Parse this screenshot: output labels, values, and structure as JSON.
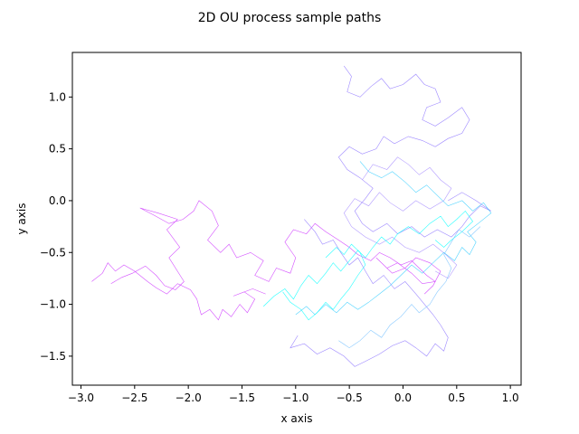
{
  "chart_data": {
    "type": "line",
    "title": "2D OU process sample paths",
    "xlabel": "x axis",
    "ylabel": "y axis",
    "xlim": [
      -3.08,
      1.1
    ],
    "ylim": [
      -1.78,
      1.43
    ],
    "xticks": [
      -3.0,
      -2.5,
      -2.0,
      -1.5,
      -1.0,
      -0.5,
      0.0,
      0.5,
      1.0
    ],
    "xtick_labels": [
      "−3.0",
      "−2.5",
      "−2.0",
      "−1.5",
      "−1.0",
      "−0.5",
      "0.0",
      "0.5",
      "1.0"
    ],
    "yticks": [
      -1.5,
      -1.0,
      -0.5,
      0.0,
      0.5,
      1.0
    ],
    "ytick_labels": [
      "−1.5",
      "−1.0",
      "−0.5",
      "0.0",
      "0.5",
      "1.0"
    ],
    "grid": false,
    "legend": null,
    "series": [
      {
        "color": "#cc33ff",
        "points": [
          [
            -2.72,
            -0.8
          ],
          [
            -2.62,
            -0.74
          ],
          [
            -2.52,
            -0.7
          ],
          [
            -2.4,
            -0.63
          ],
          [
            -2.3,
            -0.72
          ],
          [
            -2.22,
            -0.82
          ],
          [
            -2.12,
            -0.86
          ],
          [
            -2.04,
            -0.78
          ],
          [
            -2.18,
            -0.55
          ],
          [
            -2.08,
            -0.45
          ],
          [
            -2.2,
            -0.28
          ],
          [
            -2.1,
            -0.18
          ],
          [
            -2.28,
            -0.12
          ],
          [
            -2.45,
            -0.07
          ],
          [
            -2.32,
            -0.14
          ],
          [
            -2.18,
            -0.22
          ],
          [
            -2.05,
            -0.18
          ],
          [
            -1.95,
            -0.1
          ],
          [
            -1.9,
            0.0
          ],
          [
            -1.78,
            -0.1
          ],
          [
            -1.72,
            -0.24
          ],
          [
            -1.82,
            -0.38
          ],
          [
            -1.7,
            -0.5
          ],
          [
            -1.62,
            -0.42
          ],
          [
            -1.55,
            -0.55
          ],
          [
            -1.42,
            -0.5
          ],
          [
            -1.3,
            -0.58
          ],
          [
            -1.38,
            -0.72
          ],
          [
            -1.25,
            -0.78
          ],
          [
            -1.18,
            -0.65
          ],
          [
            -1.05,
            -0.7
          ],
          [
            -1.0,
            -0.55
          ],
          [
            -1.1,
            -0.4
          ],
          [
            -1.02,
            -0.28
          ],
          [
            -0.9,
            -0.32
          ],
          [
            -0.82,
            -0.22
          ],
          [
            -0.72,
            -0.3
          ],
          [
            -0.6,
            -0.38
          ],
          [
            -0.5,
            -0.45
          ],
          [
            -0.42,
            -0.52
          ],
          [
            -0.3,
            -0.58
          ],
          [
            -0.22,
            -0.5
          ],
          [
            -0.12,
            -0.55
          ],
          [
            -0.02,
            -0.62
          ],
          [
            0.08,
            -0.58
          ],
          [
            0.15,
            -0.65
          ],
          [
            0.22,
            -0.72
          ],
          [
            0.3,
            -0.78
          ],
          [
            0.18,
            -0.8
          ],
          [
            0.08,
            -0.7
          ],
          [
            -0.05,
            -0.6
          ],
          [
            -0.15,
            -0.65
          ],
          [
            -0.25,
            -0.55
          ],
          [
            -0.18,
            -0.62
          ],
          [
            -0.1,
            -0.7
          ],
          [
            0.02,
            -0.65
          ],
          [
            0.12,
            -0.55
          ],
          [
            0.25,
            -0.6
          ],
          [
            0.35,
            -0.68
          ],
          [
            0.28,
            -0.82
          ],
          [
            0.2,
            -0.9
          ]
        ]
      },
      {
        "color": "#cc33ff",
        "points": [
          [
            -2.9,
            -0.78
          ],
          [
            -2.8,
            -0.7
          ],
          [
            -2.75,
            -0.6
          ],
          [
            -2.68,
            -0.68
          ],
          [
            -2.6,
            -0.62
          ],
          [
            -2.5,
            -0.68
          ],
          [
            -2.38,
            -0.78
          ],
          [
            -2.3,
            -0.84
          ],
          [
            -2.2,
            -0.9
          ],
          [
            -2.1,
            -0.8
          ],
          [
            -1.98,
            -0.86
          ],
          [
            -1.92,
            -0.95
          ],
          [
            -1.88,
            -1.1
          ],
          [
            -1.8,
            -1.05
          ],
          [
            -1.72,
            -1.15
          ],
          [
            -1.68,
            -1.05
          ],
          [
            -1.6,
            -1.12
          ],
          [
            -1.52,
            -1.0
          ],
          [
            -1.45,
            -1.08
          ],
          [
            -1.38,
            -0.95
          ],
          [
            -1.48,
            -0.88
          ],
          [
            -1.58,
            -0.92
          ],
          [
            -1.4,
            -0.85
          ],
          [
            -1.28,
            -0.9
          ]
        ]
      },
      {
        "color": "#8c73ff",
        "points": [
          [
            -0.55,
            1.3
          ],
          [
            -0.48,
            1.2
          ],
          [
            -0.52,
            1.05
          ],
          [
            -0.4,
            1.0
          ],
          [
            -0.3,
            1.1
          ],
          [
            -0.2,
            1.18
          ],
          [
            -0.12,
            1.08
          ],
          [
            0.0,
            1.12
          ],
          [
            0.12,
            1.22
          ],
          [
            0.2,
            1.12
          ],
          [
            0.3,
            1.08
          ],
          [
            0.35,
            0.95
          ],
          [
            0.22,
            0.9
          ],
          [
            0.18,
            0.78
          ],
          [
            0.3,
            0.72
          ],
          [
            0.42,
            0.8
          ],
          [
            0.55,
            0.9
          ],
          [
            0.62,
            0.78
          ],
          [
            0.55,
            0.65
          ],
          [
            0.42,
            0.6
          ],
          [
            0.3,
            0.52
          ],
          [
            0.18,
            0.58
          ],
          [
            0.05,
            0.62
          ],
          [
            -0.08,
            0.55
          ],
          [
            -0.18,
            0.62
          ],
          [
            -0.25,
            0.5
          ],
          [
            -0.38,
            0.45
          ],
          [
            -0.5,
            0.52
          ],
          [
            -0.6,
            0.42
          ],
          [
            -0.52,
            0.3
          ],
          [
            -0.4,
            0.22
          ],
          [
            -0.28,
            0.12
          ],
          [
            -0.35,
            0.02
          ],
          [
            -0.45,
            -0.1
          ],
          [
            -0.38,
            -0.22
          ],
          [
            -0.28,
            -0.3
          ],
          [
            -0.15,
            -0.22
          ],
          [
            -0.05,
            -0.32
          ],
          [
            0.08,
            -0.25
          ],
          [
            0.2,
            -0.35
          ],
          [
            0.32,
            -0.28
          ],
          [
            0.45,
            -0.35
          ],
          [
            0.55,
            -0.25
          ],
          [
            0.62,
            -0.15
          ],
          [
            0.72,
            -0.05
          ],
          [
            0.82,
            -0.1
          ],
          [
            0.68,
            0.0
          ],
          [
            0.55,
            0.08
          ],
          [
            0.42,
            0.0
          ]
        ]
      },
      {
        "color": "#8c73ff",
        "points": [
          [
            -0.92,
            -0.18
          ],
          [
            -0.82,
            -0.3
          ],
          [
            -0.75,
            -0.42
          ],
          [
            -0.65,
            -0.38
          ],
          [
            -0.58,
            -0.5
          ],
          [
            -0.5,
            -0.62
          ],
          [
            -0.42,
            -0.55
          ],
          [
            -0.35,
            -0.68
          ],
          [
            -0.28,
            -0.8
          ],
          [
            -0.18,
            -0.72
          ],
          [
            -0.08,
            -0.85
          ],
          [
            0.02,
            -0.78
          ],
          [
            0.12,
            -0.9
          ],
          [
            0.2,
            -1.0
          ],
          [
            0.28,
            -1.1
          ],
          [
            0.35,
            -1.2
          ],
          [
            0.42,
            -1.32
          ],
          [
            0.38,
            -1.45
          ],
          [
            0.3,
            -1.38
          ],
          [
            0.22,
            -1.5
          ],
          [
            0.12,
            -1.42
          ],
          [
            0.02,
            -1.35
          ],
          [
            -0.1,
            -1.4
          ],
          [
            -0.22,
            -1.48
          ],
          [
            -0.35,
            -1.55
          ],
          [
            -0.45,
            -1.6
          ],
          [
            -0.55,
            -1.5
          ],
          [
            -0.68,
            -1.42
          ],
          [
            -0.8,
            -1.48
          ],
          [
            -0.92,
            -1.38
          ],
          [
            -1.05,
            -1.42
          ],
          [
            -0.98,
            -1.3
          ]
        ]
      },
      {
        "color": "#a68cff",
        "points": [
          [
            -0.38,
            0.2
          ],
          [
            -0.28,
            0.35
          ],
          [
            -0.15,
            0.3
          ],
          [
            -0.05,
            0.42
          ],
          [
            0.05,
            0.35
          ],
          [
            0.15,
            0.25
          ],
          [
            0.25,
            0.32
          ],
          [
            0.35,
            0.2
          ],
          [
            0.45,
            0.12
          ],
          [
            0.38,
            0.0
          ],
          [
            0.25,
            -0.08
          ],
          [
            0.12,
            0.0
          ],
          [
            0.0,
            -0.1
          ],
          [
            -0.12,
            -0.02
          ],
          [
            -0.22,
            0.08
          ],
          [
            -0.32,
            -0.05
          ],
          [
            -0.45,
            0.02
          ],
          [
            -0.55,
            -0.12
          ],
          [
            -0.48,
            -0.25
          ],
          [
            -0.35,
            -0.35
          ],
          [
            -0.22,
            -0.42
          ],
          [
            -0.1,
            -0.35
          ],
          [
            0.02,
            -0.45
          ],
          [
            0.15,
            -0.5
          ],
          [
            0.28,
            -0.42
          ],
          [
            0.4,
            -0.52
          ],
          [
            0.5,
            -0.62
          ],
          [
            0.42,
            -0.75
          ],
          [
            0.3,
            -0.68
          ]
        ]
      },
      {
        "color": "#33ccff",
        "points": [
          [
            -0.4,
            0.38
          ],
          [
            -0.32,
            0.28
          ],
          [
            -0.2,
            0.22
          ],
          [
            -0.1,
            0.28
          ],
          [
            0.02,
            0.18
          ],
          [
            0.12,
            0.08
          ],
          [
            0.22,
            0.15
          ],
          [
            0.32,
            0.05
          ],
          [
            0.42,
            -0.05
          ],
          [
            0.55,
            0.0
          ],
          [
            0.65,
            -0.1
          ],
          [
            0.75,
            -0.02
          ],
          [
            0.82,
            -0.12
          ],
          [
            0.7,
            -0.22
          ],
          [
            0.6,
            -0.3
          ],
          [
            0.68,
            -0.4
          ],
          [
            0.62,
            -0.52
          ],
          [
            0.55,
            -0.45
          ],
          [
            0.48,
            -0.58
          ],
          [
            0.38,
            -0.5
          ],
          [
            0.28,
            -0.6
          ],
          [
            0.18,
            -0.7
          ],
          [
            0.08,
            -0.62
          ],
          [
            -0.02,
            -0.72
          ],
          [
            -0.12,
            -0.82
          ],
          [
            -0.22,
            -0.9
          ],
          [
            -0.32,
            -0.98
          ],
          [
            -0.42,
            -1.05
          ],
          [
            -0.52,
            -0.98
          ],
          [
            -0.62,
            -1.08
          ],
          [
            -0.72,
            -1.0
          ],
          [
            -0.82,
            -1.1
          ],
          [
            -0.9,
            -1.02
          ],
          [
            -1.0,
            -1.1
          ]
        ]
      },
      {
        "color": "#00ffff",
        "points": [
          [
            -1.3,
            -1.02
          ],
          [
            -1.2,
            -0.92
          ],
          [
            -1.1,
            -0.85
          ],
          [
            -1.02,
            -0.95
          ],
          [
            -0.95,
            -0.82
          ],
          [
            -0.88,
            -0.72
          ],
          [
            -0.8,
            -0.8
          ],
          [
            -0.72,
            -0.7
          ],
          [
            -0.65,
            -0.6
          ],
          [
            -0.58,
            -0.68
          ],
          [
            -0.5,
            -0.58
          ],
          [
            -0.42,
            -0.48
          ],
          [
            -0.35,
            -0.55
          ],
          [
            -0.28,
            -0.45
          ],
          [
            -0.2,
            -0.35
          ],
          [
            -0.12,
            -0.42
          ],
          [
            -0.05,
            -0.32
          ],
          [
            0.05,
            -0.25
          ],
          [
            0.15,
            -0.32
          ],
          [
            0.25,
            -0.22
          ],
          [
            0.35,
            -0.15
          ],
          [
            0.42,
            -0.25
          ],
          [
            0.5,
            -0.18
          ],
          [
            0.58,
            -0.1
          ],
          [
            0.65,
            -0.2
          ],
          [
            0.55,
            -0.3
          ],
          [
            0.45,
            -0.38
          ],
          [
            0.38,
            -0.45
          ],
          [
            0.3,
            -0.38
          ]
        ]
      },
      {
        "color": "#00ffff",
        "points": [
          [
            -0.72,
            -0.55
          ],
          [
            -0.62,
            -0.45
          ],
          [
            -0.55,
            -0.52
          ],
          [
            -0.48,
            -0.42
          ],
          [
            -0.4,
            -0.5
          ],
          [
            -0.35,
            -0.62
          ],
          [
            -0.42,
            -0.72
          ],
          [
            -0.5,
            -0.85
          ],
          [
            -0.58,
            -0.95
          ],
          [
            -0.65,
            -1.05
          ],
          [
            -0.72,
            -0.98
          ],
          [
            -0.8,
            -1.08
          ],
          [
            -0.88,
            -1.15
          ],
          [
            -0.95,
            -1.05
          ],
          [
            -1.05,
            -0.98
          ],
          [
            -1.12,
            -0.88
          ]
        ]
      },
      {
        "color": "#73bfff",
        "points": [
          [
            0.72,
            -0.25
          ],
          [
            0.62,
            -0.35
          ],
          [
            0.52,
            -0.28
          ],
          [
            0.45,
            -0.4
          ],
          [
            0.38,
            -0.52
          ],
          [
            0.45,
            -0.65
          ],
          [
            0.4,
            -0.78
          ],
          [
            0.32,
            -0.88
          ],
          [
            0.25,
            -1.0
          ],
          [
            0.15,
            -1.08
          ],
          [
            0.08,
            -1.0
          ],
          [
            -0.02,
            -1.12
          ],
          [
            -0.12,
            -1.2
          ],
          [
            -0.2,
            -1.32
          ],
          [
            -0.3,
            -1.25
          ],
          [
            -0.4,
            -1.35
          ],
          [
            -0.5,
            -1.42
          ],
          [
            -0.6,
            -1.35
          ]
        ]
      }
    ]
  }
}
